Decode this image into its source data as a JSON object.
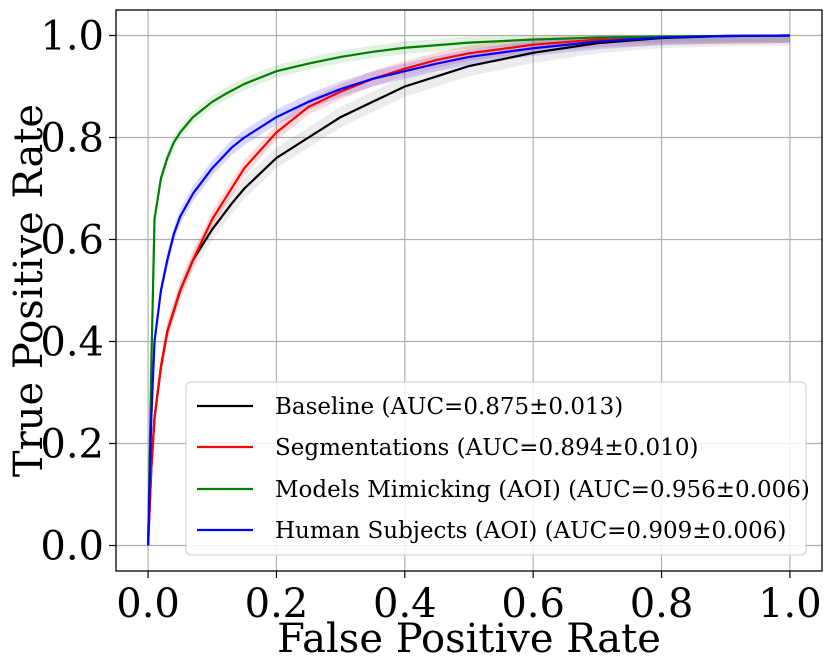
{
  "chart_data": {
    "type": "line",
    "title": "",
    "xlabel": "False Positive Rate",
    "ylabel": "True Positive Rate",
    "xlim": [
      -0.05,
      1.05
    ],
    "ylim": [
      -0.05,
      1.05
    ],
    "xticks": [
      0.0,
      0.2,
      0.4,
      0.6,
      0.8,
      1.0
    ],
    "yticks": [
      0.0,
      0.2,
      0.4,
      0.6,
      0.8,
      1.0
    ],
    "xtick_labels": [
      "0.0",
      "0.2",
      "0.4",
      "0.6",
      "0.8",
      "1.0"
    ],
    "ytick_labels": [
      "0.0",
      "0.2",
      "0.4",
      "0.6",
      "0.8",
      "1.0"
    ],
    "grid": true,
    "legend_position": "lower-right",
    "series": [
      {
        "name": "Baseline (AUC=0.875±0.013)",
        "color": "#000000",
        "band_color": "#808080",
        "band": 0.02,
        "x": [
          0,
          0.005,
          0.01,
          0.02,
          0.03,
          0.05,
          0.07,
          0.1,
          0.13,
          0.15,
          0.2,
          0.25,
          0.3,
          0.35,
          0.4,
          0.45,
          0.5,
          0.6,
          0.7,
          0.8,
          0.9,
          1.0
        ],
        "y": [
          0,
          0.15,
          0.25,
          0.35,
          0.42,
          0.5,
          0.56,
          0.62,
          0.67,
          0.7,
          0.76,
          0.8,
          0.84,
          0.87,
          0.9,
          0.92,
          0.94,
          0.966,
          0.985,
          0.995,
          0.999,
          1.0
        ]
      },
      {
        "name": "Segmentations (AUC=0.894±0.010)",
        "color": "#ff0000",
        "band_color": "#ff0000",
        "band": 0.015,
        "x": [
          0,
          0.005,
          0.01,
          0.02,
          0.03,
          0.05,
          0.07,
          0.1,
          0.13,
          0.15,
          0.2,
          0.25,
          0.3,
          0.35,
          0.4,
          0.45,
          0.5,
          0.6,
          0.7,
          0.8,
          0.9,
          1.0
        ],
        "y": [
          0,
          0.15,
          0.25,
          0.35,
          0.42,
          0.5,
          0.56,
          0.64,
          0.7,
          0.74,
          0.81,
          0.86,
          0.89,
          0.915,
          0.935,
          0.952,
          0.965,
          0.982,
          0.992,
          0.997,
          0.999,
          1.0
        ]
      },
      {
        "name": "Models Mimicking (AOI) (AUC=0.956±0.006)",
        "color": "#008000",
        "band_color": "#2ca02c",
        "band": 0.012,
        "x": [
          0,
          0.005,
          0.01,
          0.015,
          0.02,
          0.03,
          0.04,
          0.05,
          0.06,
          0.07,
          0.08,
          0.1,
          0.12,
          0.15,
          0.2,
          0.25,
          0.3,
          0.35,
          0.4,
          0.5,
          0.6,
          0.7,
          0.8,
          0.9,
          1.0
        ],
        "y": [
          0,
          0.35,
          0.64,
          0.68,
          0.72,
          0.76,
          0.79,
          0.81,
          0.825,
          0.84,
          0.85,
          0.87,
          0.885,
          0.905,
          0.93,
          0.945,
          0.958,
          0.968,
          0.976,
          0.986,
          0.992,
          0.996,
          0.998,
          0.999,
          1.0
        ]
      },
      {
        "name": "Human Subjects (AOI) (AUC=0.909±0.006)",
        "color": "#0000ff",
        "band_color": "#0000ff",
        "band": 0.015,
        "x": [
          0,
          0.005,
          0.01,
          0.02,
          0.03,
          0.04,
          0.05,
          0.07,
          0.1,
          0.13,
          0.15,
          0.2,
          0.25,
          0.3,
          0.35,
          0.4,
          0.45,
          0.5,
          0.6,
          0.7,
          0.8,
          0.9,
          1.0
        ],
        "y": [
          0,
          0.25,
          0.4,
          0.5,
          0.56,
          0.61,
          0.645,
          0.69,
          0.74,
          0.78,
          0.8,
          0.84,
          0.87,
          0.895,
          0.915,
          0.93,
          0.945,
          0.958,
          0.975,
          0.988,
          0.996,
          0.999,
          1.0
        ]
      }
    ]
  }
}
